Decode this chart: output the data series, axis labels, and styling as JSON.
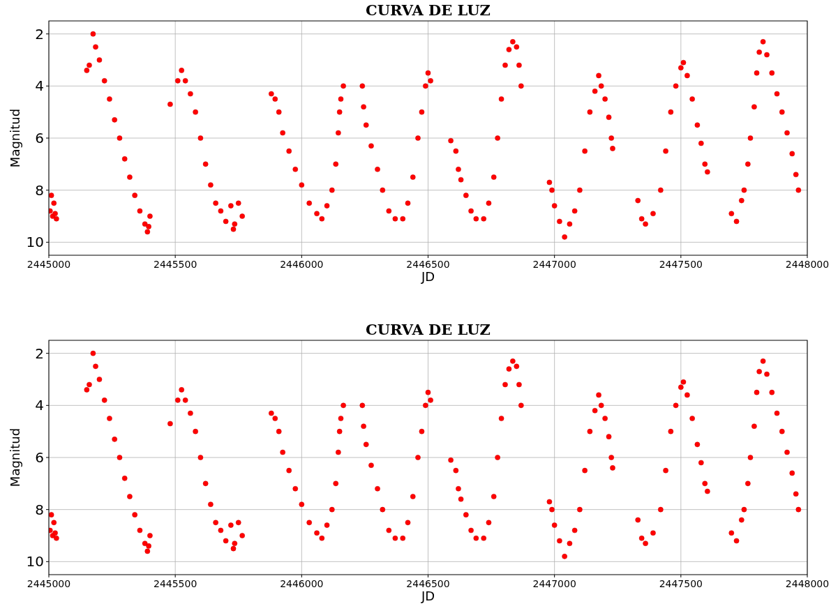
{
  "chart_data": [
    {
      "type": "scatter",
      "title": "CURVA DE LUZ",
      "xlabel": "JD",
      "ylabel": "Magnitud",
      "xlim": [
        2445000,
        2448000
      ],
      "xticks": [
        2445000,
        2445500,
        2446000,
        2446500,
        2447000,
        2447500,
        2448000
      ],
      "ylim": [
        10.5,
        1.5
      ],
      "yticks": [
        2,
        4,
        6,
        8,
        10
      ],
      "grid": true,
      "marker": "circle",
      "series": [
        {
          "color": "#ff0000",
          "x": [
            2445005,
            2445010,
            2445015,
            2445020,
            2445025,
            2445030,
            2445150,
            2445160,
            2445175,
            2445185,
            2445200,
            2445220,
            2445240,
            2445260,
            2445280,
            2445300,
            2445320,
            2445340,
            2445360,
            2445380,
            2445390,
            2445395,
            2445400,
            2445480,
            2445510,
            2445525,
            2445540,
            2445560,
            2445580,
            2445600,
            2445620,
            2445640,
            2445660,
            2445680,
            2445700,
            2445720,
            2445730,
            2445735,
            2445750,
            2445765,
            2445880,
            2445895,
            2445910,
            2445925,
            2445950,
            2445975,
            2446000,
            2446030,
            2446060,
            2446080,
            2446100,
            2446120,
            2446135,
            2446145,
            2446150,
            2446155,
            2446165,
            2446240,
            2446245,
            2446255,
            2446275,
            2446300,
            2446320,
            2446345,
            2446370,
            2446400,
            2446420,
            2446440,
            2446460,
            2446475,
            2446490,
            2446500,
            2446510,
            2446590,
            2446610,
            2446620,
            2446630,
            2446650,
            2446670,
            2446690,
            2446720,
            2446740,
            2446760,
            2446775,
            2446790,
            2446805,
            2446820,
            2446835,
            2446850,
            2446860,
            2446868,
            2446980,
            2446990,
            2447000,
            2447020,
            2447040,
            2447060,
            2447080,
            2447100,
            2447120,
            2447140,
            2447160,
            2447175,
            2447185,
            2447200,
            2447215,
            2447225,
            2447230,
            2447330,
            2447345,
            2447360,
            2447390,
            2447420,
            2447440,
            2447460,
            2447480,
            2447500,
            2447510,
            2447525,
            2447545,
            2447565,
            2447580,
            2447595,
            2447605,
            2447700,
            2447720,
            2447740,
            2447750,
            2447765,
            2447775,
            2447790,
            2447800,
            2447810,
            2447825,
            2447840,
            2447860,
            2447880,
            2447900,
            2447920,
            2447940,
            2447955,
            2447965
          ],
          "values": [
            8.8,
            8.2,
            9.0,
            8.5,
            8.9,
            9.1,
            3.4,
            3.2,
            2.0,
            2.5,
            3.0,
            3.8,
            4.5,
            5.3,
            6.0,
            6.8,
            7.5,
            8.2,
            8.8,
            9.3,
            9.6,
            9.4,
            9.0,
            4.7,
            3.8,
            3.4,
            3.8,
            4.3,
            5.0,
            6.0,
            7.0,
            7.8,
            8.5,
            8.8,
            9.2,
            8.6,
            9.5,
            9.3,
            8.5,
            9.0,
            4.3,
            4.5,
            5.0,
            5.8,
            6.5,
            7.2,
            7.8,
            8.5,
            8.9,
            9.1,
            8.6,
            8.0,
            7.0,
            5.8,
            5.0,
            4.5,
            4.0,
            4.0,
            4.8,
            5.5,
            6.3,
            7.2,
            8.0,
            8.8,
            9.1,
            9.1,
            8.5,
            7.5,
            6.0,
            5.0,
            4.0,
            3.5,
            3.8,
            6.1,
            6.5,
            7.2,
            7.6,
            8.2,
            8.8,
            9.1,
            9.1,
            8.5,
            7.5,
            6.0,
            4.5,
            3.2,
            2.6,
            2.3,
            2.5,
            3.2,
            4.0,
            7.7,
            8.0,
            8.6,
            9.2,
            9.8,
            9.3,
            8.8,
            8.0,
            6.5,
            5.0,
            4.2,
            3.6,
            4.0,
            4.5,
            5.2,
            6.0,
            6.4,
            8.4,
            9.1,
            9.3,
            8.9,
            8.0,
            6.5,
            5.0,
            4.0,
            3.3,
            3.1,
            3.6,
            4.5,
            5.5,
            6.2,
            7.0,
            7.3,
            8.9,
            9.2,
            8.4,
            8.0,
            7.0,
            6.0,
            4.8,
            3.5,
            2.7,
            2.3,
            2.8,
            3.5,
            4.3,
            5.0,
            5.8,
            6.6,
            7.4,
            8.0
          ]
        }
      ]
    },
    {
      "type": "scatter",
      "title": "CURVA DE LUZ",
      "xlabel": "JD",
      "ylabel": "Magnitud",
      "xlim": [
        2445000,
        2448000
      ],
      "xticks": [
        2445000,
        2445500,
        2446000,
        2446500,
        2447000,
        2447500,
        2448000
      ],
      "ylim": [
        10.5,
        1.5
      ],
      "yticks": [
        2,
        4,
        6,
        8,
        10
      ],
      "grid": true,
      "marker": "circle",
      "series": [
        {
          "color": "#ff0000",
          "x": [
            2445005,
            2445010,
            2445015,
            2445020,
            2445025,
            2445030,
            2445150,
            2445160,
            2445175,
            2445185,
            2445200,
            2445220,
            2445240,
            2445260,
            2445280,
            2445300,
            2445320,
            2445340,
            2445360,
            2445380,
            2445390,
            2445395,
            2445400,
            2445480,
            2445510,
            2445525,
            2445540,
            2445560,
            2445580,
            2445600,
            2445620,
            2445640,
            2445660,
            2445680,
            2445700,
            2445720,
            2445730,
            2445735,
            2445750,
            2445765,
            2445880,
            2445895,
            2445910,
            2445925,
            2445950,
            2445975,
            2446000,
            2446030,
            2446060,
            2446080,
            2446100,
            2446120,
            2446135,
            2446145,
            2446150,
            2446155,
            2446165,
            2446240,
            2446245,
            2446255,
            2446275,
            2446300,
            2446320,
            2446345,
            2446370,
            2446400,
            2446420,
            2446440,
            2446460,
            2446475,
            2446490,
            2446500,
            2446510,
            2446590,
            2446610,
            2446620,
            2446630,
            2446650,
            2446670,
            2446690,
            2446720,
            2446740,
            2446760,
            2446775,
            2446790,
            2446805,
            2446820,
            2446835,
            2446850,
            2446860,
            2446868,
            2446980,
            2446990,
            2447000,
            2447020,
            2447040,
            2447060,
            2447080,
            2447100,
            2447120,
            2447140,
            2447160,
            2447175,
            2447185,
            2447200,
            2447215,
            2447225,
            2447230,
            2447330,
            2447345,
            2447360,
            2447390,
            2447420,
            2447440,
            2447460,
            2447480,
            2447500,
            2447510,
            2447525,
            2447545,
            2447565,
            2447580,
            2447595,
            2447605,
            2447700,
            2447720,
            2447740,
            2447750,
            2447765,
            2447775,
            2447790,
            2447800,
            2447810,
            2447825,
            2447840,
            2447860,
            2447880,
            2447900,
            2447920,
            2447940,
            2447955,
            2447965
          ],
          "values": [
            8.8,
            8.2,
            9.0,
            8.5,
            8.9,
            9.1,
            3.4,
            3.2,
            2.0,
            2.5,
            3.0,
            3.8,
            4.5,
            5.3,
            6.0,
            6.8,
            7.5,
            8.2,
            8.8,
            9.3,
            9.6,
            9.4,
            9.0,
            4.7,
            3.8,
            3.4,
            3.8,
            4.3,
            5.0,
            6.0,
            7.0,
            7.8,
            8.5,
            8.8,
            9.2,
            8.6,
            9.5,
            9.3,
            8.5,
            9.0,
            4.3,
            4.5,
            5.0,
            5.8,
            6.5,
            7.2,
            7.8,
            8.5,
            8.9,
            9.1,
            8.6,
            8.0,
            7.0,
            5.8,
            5.0,
            4.5,
            4.0,
            4.0,
            4.8,
            5.5,
            6.3,
            7.2,
            8.0,
            8.8,
            9.1,
            9.1,
            8.5,
            7.5,
            6.0,
            5.0,
            4.0,
            3.5,
            3.8,
            6.1,
            6.5,
            7.2,
            7.6,
            8.2,
            8.8,
            9.1,
            9.1,
            8.5,
            7.5,
            6.0,
            4.5,
            3.2,
            2.6,
            2.3,
            2.5,
            3.2,
            4.0,
            7.7,
            8.0,
            8.6,
            9.2,
            9.8,
            9.3,
            8.8,
            8.0,
            6.5,
            5.0,
            4.2,
            3.6,
            4.0,
            4.5,
            5.2,
            6.0,
            6.4,
            8.4,
            9.1,
            9.3,
            8.9,
            8.0,
            6.5,
            5.0,
            4.0,
            3.3,
            3.1,
            3.6,
            4.5,
            5.5,
            6.2,
            7.0,
            7.3,
            8.9,
            9.2,
            8.4,
            8.0,
            7.0,
            6.0,
            4.8,
            3.5,
            2.7,
            2.3,
            2.8,
            3.5,
            4.3,
            5.0,
            5.8,
            6.6,
            7.4,
            8.0
          ]
        }
      ]
    }
  ]
}
